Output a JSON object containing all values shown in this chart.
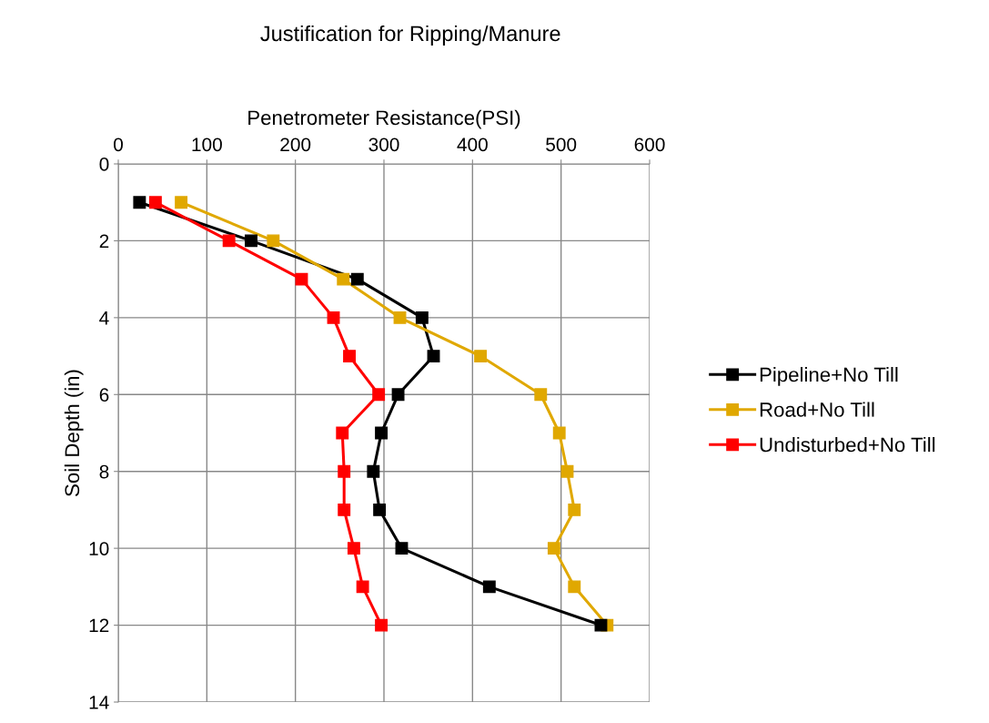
{
  "chart_data": {
    "type": "line",
    "title": "Justification for Ripping/Manure",
    "xlabel": "Penetrometer Resistance(PSI)",
    "ylabel": "Soil Depth (in)",
    "xlim": [
      0,
      600
    ],
    "xticks": [
      0,
      100,
      200,
      300,
      400,
      500,
      600
    ],
    "ylim": [
      14,
      0
    ],
    "yticks": [
      0,
      2,
      4,
      6,
      8,
      10,
      12,
      14
    ],
    "grid": true,
    "legend": "right",
    "marker": "square",
    "line_style": "solid",
    "series": [
      {
        "name": "Pipeline+No Till",
        "color": "#000000",
        "x": [
          24,
          150,
          270,
          343,
          356,
          316,
          297,
          288,
          295,
          320,
          419,
          545
        ],
        "values": [
          1,
          2,
          3,
          4,
          5,
          6,
          7,
          8,
          9,
          10,
          11,
          12
        ]
      },
      {
        "name": "Road+No Till",
        "color": "#e0a800",
        "x": [
          71,
          175,
          254,
          318,
          409,
          477,
          498,
          507,
          515,
          492,
          515,
          552
        ],
        "values": [
          1,
          2,
          3,
          4,
          5,
          6,
          7,
          8,
          9,
          10,
          11,
          12
        ]
      },
      {
        "name": "Undisturbed+No Till",
        "color": "#ff0000",
        "x": [
          42,
          125,
          207,
          243,
          261,
          294,
          253,
          255,
          255,
          266,
          276,
          297
        ],
        "values": [
          1,
          2,
          3,
          4,
          5,
          6,
          7,
          8,
          9,
          10,
          11,
          12
        ]
      }
    ]
  }
}
